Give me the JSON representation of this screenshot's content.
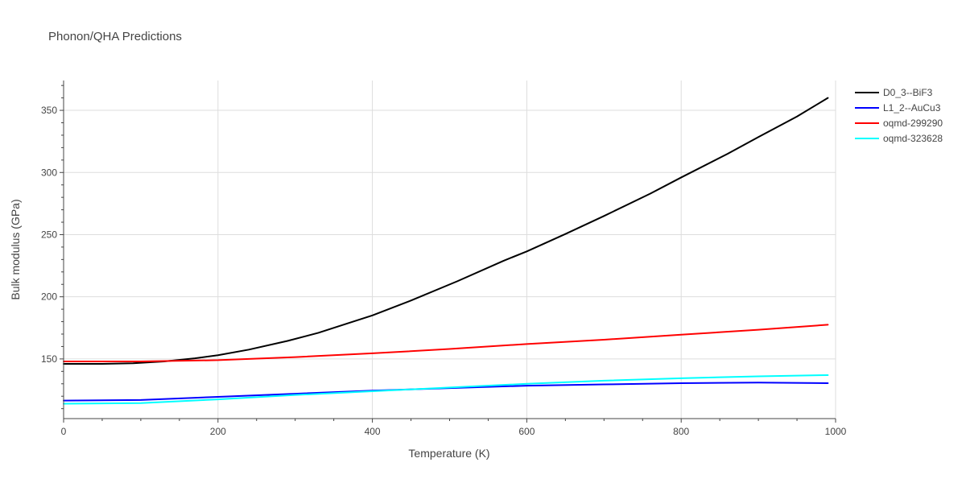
{
  "chart_data": {
    "type": "line",
    "title": "Phonon/QHA Predictions",
    "xlabel": "Temperature (K)",
    "ylabel": "Bulk modulus (GPa)",
    "xlim": [
      0,
      1000
    ],
    "ylim": [
      102,
      374
    ],
    "x_ticks": [
      0,
      200,
      400,
      600,
      800,
      1000
    ],
    "y_ticks": [
      150,
      200,
      250,
      300,
      350
    ],
    "grid": true,
    "legend_position": "top-right",
    "series": [
      {
        "name": "D0_3--BiF3",
        "color": "#000000",
        "x": [
          0,
          50,
          90,
          130,
          170,
          200,
          240,
          290,
          330,
          370,
          400,
          450,
          510,
          570,
          600,
          650,
          700,
          760,
          800,
          860,
          900,
          950,
          990
        ],
        "y": [
          146,
          146,
          146.5,
          148,
          150.5,
          153,
          157.5,
          164.5,
          171,
          179,
          185,
          197,
          212.5,
          229,
          236.5,
          250.5,
          265,
          283,
          296,
          315,
          328.5,
          345,
          360
        ]
      },
      {
        "name": "L1_2--AuCu3",
        "color": "#0000ff",
        "x": [
          0,
          100,
          200,
          300,
          400,
          500,
          600,
          700,
          800,
          900,
          990
        ],
        "y": [
          116.5,
          117,
          119.5,
          122,
          124.5,
          126.5,
          128.5,
          129.5,
          130.5,
          131,
          130.5
        ]
      },
      {
        "name": "oqmd-299290",
        "color": "#ff0000",
        "x": [
          0,
          100,
          200,
          300,
          400,
          500,
          600,
          700,
          800,
          900,
          990
        ],
        "y": [
          148,
          148,
          149,
          151.5,
          154.5,
          158,
          162,
          165.5,
          169.5,
          173.5,
          177.5
        ]
      },
      {
        "name": "oqmd-323628",
        "color": "#00ffff",
        "x": [
          0,
          100,
          200,
          300,
          400,
          500,
          600,
          700,
          800,
          900,
          990
        ],
        "y": [
          114,
          114.5,
          117.5,
          121,
          124,
          127,
          130,
          132.5,
          134.5,
          136,
          137
        ]
      }
    ]
  }
}
